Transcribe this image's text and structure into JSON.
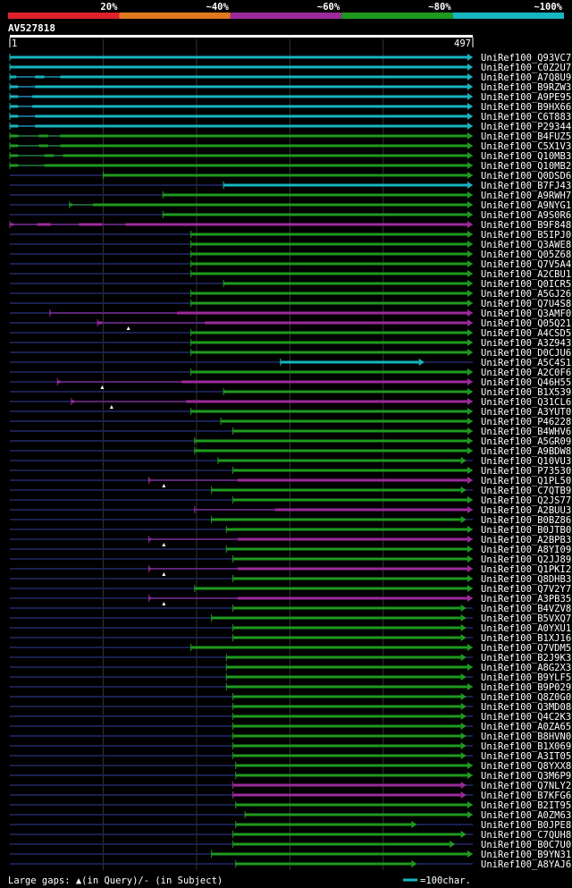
{
  "legend": {
    "labels": [
      "20%",
      "~40%",
      "~60%",
      "~80%",
      "~100%"
    ],
    "colors": [
      "#e0202a",
      "#e07820",
      "#9c2a9a",
      "#1e9a1e",
      "#16b5c0"
    ]
  },
  "query": {
    "id": "AV527818",
    "start": "1",
    "end": "497",
    "length": 497
  },
  "colors": {
    "cyan": "#16b5c0",
    "green": "#1e9a1e",
    "magenta": "#9c2a9a",
    "dim": "#1a2050",
    "grid": "#333333"
  },
  "hits": [
    {
      "name": "UniRef100_Q93VC7",
      "start": 1,
      "end": 497,
      "color": "cyan",
      "thin": []
    },
    {
      "name": "UniRef100_C0Z2U7",
      "start": 1,
      "end": 497,
      "color": "cyan",
      "thin": []
    },
    {
      "name": "UniRef100_A7Q8U9",
      "start": 1,
      "end": 497,
      "color": "cyan",
      "thin": [
        [
          8,
          28
        ],
        [
          38,
          55
        ]
      ]
    },
    {
      "name": "UniRef100_B9RZW3",
      "start": 1,
      "end": 497,
      "color": "cyan",
      "thin": [
        [
          10,
          28
        ]
      ]
    },
    {
      "name": "UniRef100_A9PE95",
      "start": 1,
      "end": 497,
      "color": "cyan",
      "thin": [
        [
          10,
          25
        ]
      ]
    },
    {
      "name": "UniRef100_B9HX66",
      "start": 1,
      "end": 497,
      "color": "cyan",
      "thin": [
        [
          10,
          25
        ]
      ]
    },
    {
      "name": "UniRef100_C6T883",
      "start": 1,
      "end": 497,
      "color": "cyan",
      "thin": [
        [
          10,
          28
        ]
      ]
    },
    {
      "name": "UniRef100_P29344",
      "start": 1,
      "end": 497,
      "color": "cyan",
      "thin": [
        [
          10,
          28
        ]
      ]
    },
    {
      "name": "UniRef100_B4FUZ5",
      "start": 1,
      "end": 497,
      "color": "green",
      "thin": [
        [
          10,
          32
        ],
        [
          42,
          55
        ]
      ]
    },
    {
      "name": "UniRef100_C5X1V3",
      "start": 1,
      "end": 497,
      "color": "green",
      "thin": [
        [
          10,
          32
        ],
        [
          42,
          55
        ]
      ]
    },
    {
      "name": "UniRef100_Q10MB3",
      "start": 1,
      "end": 497,
      "color": "green",
      "thin": [
        [
          10,
          38
        ],
        [
          48,
          58
        ]
      ]
    },
    {
      "name": "UniRef100_Q10MB2",
      "start": 1,
      "end": 497,
      "color": "green",
      "thin": [
        [
          10,
          38
        ]
      ]
    },
    {
      "name": "UniRef100_Q0DSD6",
      "start": 101,
      "end": 497,
      "color": "green",
      "thin": []
    },
    {
      "name": "UniRef100_B7FJ43",
      "start": 230,
      "end": 497,
      "color": "cyan",
      "thin": []
    },
    {
      "name": "UniRef100_A9RWH7",
      "start": 165,
      "end": 497,
      "color": "green",
      "thin": []
    },
    {
      "name": "UniRef100_A9NYG1",
      "start": 65,
      "end": 497,
      "color": "green",
      "thin": [
        [
          68,
          90
        ]
      ]
    },
    {
      "name": "UniRef100_A9S0R6",
      "start": 165,
      "end": 497,
      "color": "green",
      "thin": []
    },
    {
      "name": "UniRef100_B9F848",
      "start": 1,
      "end": 497,
      "color": "magenta",
      "thin": [
        [
          5,
          30
        ],
        [
          45,
          75
        ],
        [
          100,
          125
        ]
      ]
    },
    {
      "name": "UniRef100_B5IPJ0",
      "start": 195,
      "end": 497,
      "color": "green",
      "thin": []
    },
    {
      "name": "UniRef100_Q3AWE8",
      "start": 195,
      "end": 497,
      "color": "green",
      "thin": []
    },
    {
      "name": "UniRef100_Q05Z68",
      "start": 195,
      "end": 497,
      "color": "green",
      "thin": []
    },
    {
      "name": "UniRef100_Q7V5A4",
      "start": 195,
      "end": 497,
      "color": "green",
      "thin": []
    },
    {
      "name": "UniRef100_A2CBU1",
      "start": 195,
      "end": 497,
      "color": "green",
      "thin": []
    },
    {
      "name": "UniRef100_Q0ICR5",
      "start": 230,
      "end": 497,
      "color": "green",
      "thin": []
    },
    {
      "name": "UniRef100_A5GJ26",
      "start": 195,
      "end": 497,
      "color": "green",
      "thin": []
    },
    {
      "name": "UniRef100_Q7U4S8",
      "start": 195,
      "end": 497,
      "color": "green",
      "thin": []
    },
    {
      "name": "UniRef100_Q3AMF0",
      "start": 44,
      "end": 497,
      "color": "magenta",
      "thin": [
        [
          45,
          180
        ]
      ]
    },
    {
      "name": "UniRef100_Q05Q21",
      "start": 95,
      "end": 497,
      "color": "magenta",
      "thin": [
        [
          100,
          210
        ]
      ],
      "query_gap": 128
    },
    {
      "name": "UniRef100_A4CSD5",
      "start": 195,
      "end": 497,
      "color": "green",
      "thin": []
    },
    {
      "name": "UniRef100_A3Z943",
      "start": 195,
      "end": 497,
      "color": "green",
      "thin": []
    },
    {
      "name": "UniRef100_D0CJU6",
      "start": 195,
      "end": 497,
      "color": "green",
      "thin": []
    },
    {
      "name": "UniRef100_A5C4S1",
      "start": 291,
      "end": 445,
      "color": "cyan",
      "thin": []
    },
    {
      "name": "UniRef100_A2C0F6",
      "start": 195,
      "end": 497,
      "color": "green",
      "thin": []
    },
    {
      "name": "UniRef100_Q46H55",
      "start": 52,
      "end": 497,
      "color": "magenta",
      "thin": [
        [
          55,
          185
        ]
      ],
      "query_gap": 100
    },
    {
      "name": "UniRef100_B1X539",
      "start": 230,
      "end": 497,
      "color": "green",
      "thin": []
    },
    {
      "name": "UniRef100_Q31CL6",
      "start": 67,
      "end": 497,
      "color": "magenta",
      "thin": [
        [
          70,
          190
        ]
      ],
      "query_gap": 110
    },
    {
      "name": "UniRef100_A3YUT0",
      "start": 195,
      "end": 497,
      "color": "green",
      "thin": []
    },
    {
      "name": "UniRef100_P46228",
      "start": 227,
      "end": 497,
      "color": "green",
      "thin": []
    },
    {
      "name": "UniRef100_B4WHV6",
      "start": 240,
      "end": 497,
      "color": "green",
      "thin": []
    },
    {
      "name": "UniRef100_A5GR09",
      "start": 199,
      "end": 497,
      "color": "green",
      "thin": []
    },
    {
      "name": "UniRef100_A9BDW8",
      "start": 199,
      "end": 497,
      "color": "green",
      "thin": []
    },
    {
      "name": "UniRef100_Q10VU3",
      "start": 224,
      "end": 490,
      "color": "green",
      "thin": []
    },
    {
      "name": "UniRef100_P73530",
      "start": 240,
      "end": 497,
      "color": "green",
      "thin": []
    },
    {
      "name": "UniRef100_Q1PL50",
      "start": 150,
      "end": 497,
      "color": "magenta",
      "thin": [
        [
          152,
          245
        ]
      ],
      "query_gap": 166
    },
    {
      "name": "UniRef100_C7QTB9",
      "start": 217,
      "end": 490,
      "color": "green",
      "thin": []
    },
    {
      "name": "UniRef100_Q2JS77",
      "start": 240,
      "end": 497,
      "color": "green",
      "thin": []
    },
    {
      "name": "UniRef100_A2BUU3",
      "start": 199,
      "end": 497,
      "color": "magenta",
      "thin": [
        [
          200,
          285
        ]
      ]
    },
    {
      "name": "UniRef100_B0BZ86",
      "start": 217,
      "end": 490,
      "color": "green",
      "thin": []
    },
    {
      "name": "UniRef100_B0JTB0",
      "start": 233,
      "end": 497,
      "color": "green",
      "thin": []
    },
    {
      "name": "UniRef100_A2BPB3",
      "start": 150,
      "end": 497,
      "color": "magenta",
      "thin": [
        [
          152,
          245
        ]
      ],
      "query_gap": 166
    },
    {
      "name": "UniRef100_A8YI09",
      "start": 233,
      "end": 497,
      "color": "green",
      "thin": []
    },
    {
      "name": "UniRef100_Q2JJ89",
      "start": 240,
      "end": 497,
      "color": "green",
      "thin": []
    },
    {
      "name": "UniRef100_Q1PKI2",
      "start": 150,
      "end": 497,
      "color": "magenta",
      "thin": [
        [
          152,
          245
        ]
      ],
      "query_gap": 166
    },
    {
      "name": "UniRef100_Q8DHB3",
      "start": 240,
      "end": 497,
      "color": "green",
      "thin": []
    },
    {
      "name": "UniRef100_Q7V2Y7",
      "start": 199,
      "end": 497,
      "color": "green",
      "thin": []
    },
    {
      "name": "UniRef100_A3PB35",
      "start": 150,
      "end": 497,
      "color": "magenta",
      "thin": [
        [
          152,
          245
        ]
      ],
      "query_gap": 166
    },
    {
      "name": "UniRef100_B4VZV8",
      "start": 240,
      "end": 490,
      "color": "green",
      "thin": []
    },
    {
      "name": "UniRef100_B5VXQ7",
      "start": 217,
      "end": 490,
      "color": "green",
      "thin": []
    },
    {
      "name": "UniRef100_A0YXU1",
      "start": 240,
      "end": 490,
      "color": "green",
      "thin": []
    },
    {
      "name": "UniRef100_B1XJ16",
      "start": 240,
      "end": 490,
      "color": "green",
      "thin": []
    },
    {
      "name": "UniRef100_Q7VDM5",
      "start": 195,
      "end": 497,
      "color": "green",
      "thin": []
    },
    {
      "name": "UniRef100_B2J9K3",
      "start": 233,
      "end": 490,
      "color": "green",
      "thin": []
    },
    {
      "name": "UniRef100_A8G2X3",
      "start": 233,
      "end": 497,
      "color": "green",
      "thin": []
    },
    {
      "name": "UniRef100_B9YLF5",
      "start": 233,
      "end": 490,
      "color": "green",
      "thin": []
    },
    {
      "name": "UniRef100_B9P029",
      "start": 233,
      "end": 497,
      "color": "green",
      "thin": []
    },
    {
      "name": "UniRef100_Q8Z0G0",
      "start": 240,
      "end": 490,
      "color": "green",
      "thin": []
    },
    {
      "name": "UniRef100_Q3MD08",
      "start": 240,
      "end": 490,
      "color": "green",
      "thin": []
    },
    {
      "name": "UniRef100_Q4C2K3",
      "start": 240,
      "end": 490,
      "color": "green",
      "thin": []
    },
    {
      "name": "UniRef100_A0ZA65",
      "start": 240,
      "end": 490,
      "color": "green",
      "thin": []
    },
    {
      "name": "UniRef100_B8HVN0",
      "start": 240,
      "end": 490,
      "color": "green",
      "thin": []
    },
    {
      "name": "UniRef100_B1X069",
      "start": 240,
      "end": 490,
      "color": "green",
      "thin": []
    },
    {
      "name": "UniRef100_A3IT05",
      "start": 240,
      "end": 490,
      "color": "green",
      "thin": []
    },
    {
      "name": "UniRef100_Q8YXX8",
      "start": 243,
      "end": 497,
      "color": "green",
      "thin": []
    },
    {
      "name": "UniRef100_Q3M6P9",
      "start": 243,
      "end": 497,
      "color": "green",
      "thin": []
    },
    {
      "name": "UniRef100_Q7NLY2",
      "start": 240,
      "end": 490,
      "color": "magenta",
      "thin": []
    },
    {
      "name": "UniRef100_B7KFG6",
      "start": 240,
      "end": 490,
      "color": "magenta",
      "thin": []
    },
    {
      "name": "UniRef100_B2IT95",
      "start": 243,
      "end": 497,
      "color": "green",
      "thin": []
    },
    {
      "name": "UniRef100_A0ZM63",
      "start": 253,
      "end": 497,
      "color": "green",
      "thin": []
    },
    {
      "name": "UniRef100_B0JPE8",
      "start": 243,
      "end": 437,
      "color": "green",
      "thin": []
    },
    {
      "name": "UniRef100_C7QUH8",
      "start": 240,
      "end": 490,
      "color": "green",
      "thin": []
    },
    {
      "name": "UniRef100_B0C7U0",
      "start": 240,
      "end": 478,
      "color": "green",
      "thin": []
    },
    {
      "name": "UniRef100_B9YN31",
      "start": 217,
      "end": 497,
      "color": "green",
      "thin": []
    },
    {
      "name": "UniRef100_A8YAJ6",
      "start": 243,
      "end": 437,
      "color": "green",
      "thin": []
    }
  ],
  "footer": {
    "gap_legend": "Large gaps: ▲(in Query)/- (in Subject)",
    "scale_label": "=100char."
  }
}
